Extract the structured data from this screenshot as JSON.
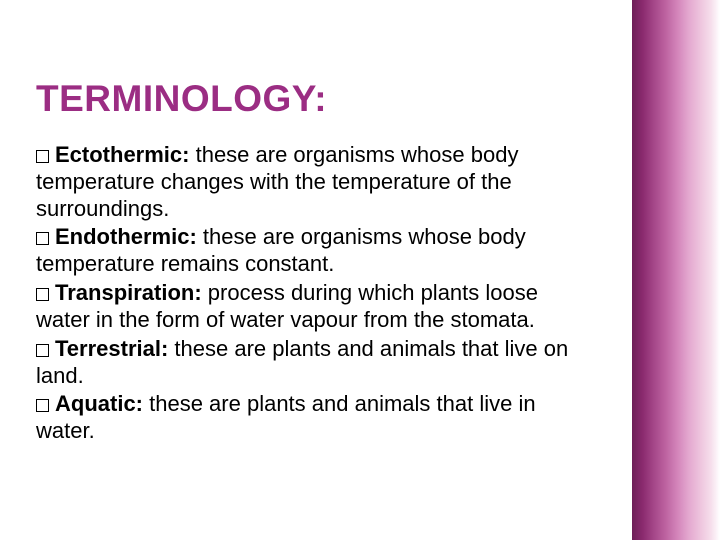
{
  "title": "TERMINOLOGY:",
  "colors": {
    "title_color": "#9b2d83",
    "text_color": "#000000",
    "slide_bg": "#ffffff",
    "page_bg": "#000000"
  },
  "typography": {
    "title_fontsize": 37,
    "body_fontsize": 22,
    "font_family": "Trebuchet MS"
  },
  "sidebar_gradient": [
    "#6e1e58",
    "#8a2a6e",
    "#a54789",
    "#bd62a0",
    "#d486bb",
    "#e4a9d0",
    "#eec5de",
    "#f6dfec",
    "#ffffff"
  ],
  "items": [
    {
      "term": "Ectothermic: ",
      "definition": " these are organisms whose body temperature changes with the temperature of the surroundings."
    },
    {
      "term": "Endothermic: ",
      "definition": " these are organisms whose body temperature remains constant."
    },
    {
      "term": "Transpiration:",
      "definition": " process during which plants loose water in the form of water vapour from the stomata."
    },
    {
      "term": "Terrestrial:",
      "definition": " these are plants and animals that live on land."
    },
    {
      "term": "Aquatic: ",
      "definition": " these are plants and animals that live in water."
    }
  ]
}
